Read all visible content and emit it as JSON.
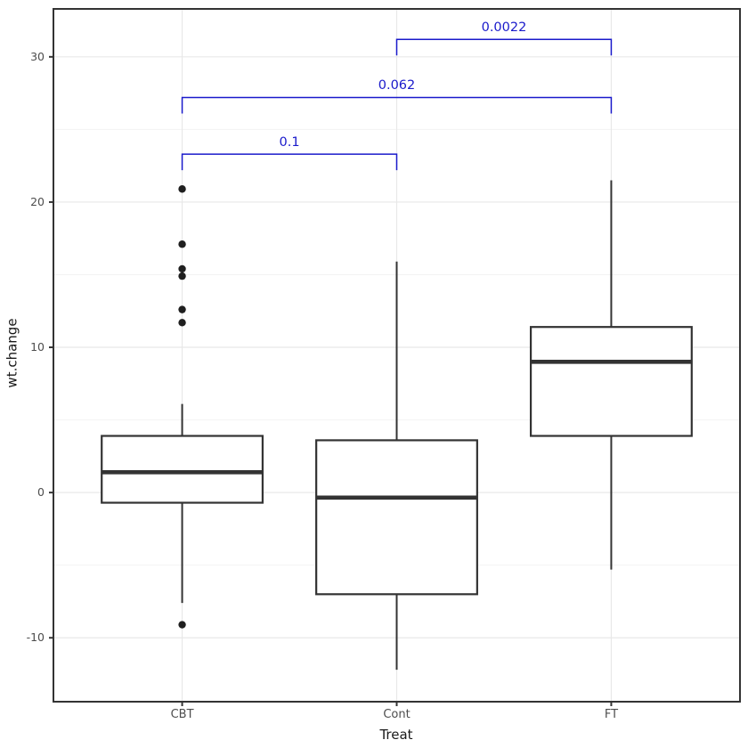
{
  "chart_data": {
    "type": "boxplot",
    "title": "",
    "xlabel": "Treat",
    "ylabel": "wt.change",
    "categories": [
      "CBT",
      "Cont",
      "FT"
    ],
    "yticks": [
      -10,
      0,
      10,
      20,
      30
    ],
    "yticks_minor": [
      -5,
      5,
      15,
      25
    ],
    "ylim": [
      -14.4,
      33.3
    ],
    "grid": "on",
    "boxes": [
      {
        "category": "CBT",
        "lower_whisker": -7.6,
        "q1": -0.7,
        "median": 1.4,
        "q3": 3.9,
        "upper_whisker": 6.1,
        "outliers": [
          20.9,
          17.1,
          15.4,
          14.9,
          12.6,
          11.7,
          -9.1
        ]
      },
      {
        "category": "Cont",
        "lower_whisker": -12.2,
        "q1": -7.0,
        "median": -0.35,
        "q3": 3.6,
        "upper_whisker": 15.9,
        "outliers": []
      },
      {
        "category": "FT",
        "lower_whisker": -5.3,
        "q1": 3.9,
        "median": 9.0,
        "q3": 11.4,
        "upper_whisker": 21.5,
        "outliers": []
      }
    ],
    "comparisons": [
      {
        "group1": "CBT",
        "group2": "Cont",
        "p_label": "0.1",
        "y": 23.3
      },
      {
        "group1": "CBT",
        "group2": "FT",
        "p_label": "0.062",
        "y": 27.2
      },
      {
        "group1": "Cont",
        "group2": "FT",
        "p_label": "0.0022",
        "y": 31.2
      }
    ],
    "colors": {
      "background": "#FFFFFF",
      "panel_border": "#333333",
      "grid_major": "#E8E8E8",
      "grid_minor": "#F3F3F3",
      "box_stroke": "#333333",
      "box_fill": "#FFFFFF",
      "point": "#1F1F1F",
      "bracket": "#1A1ACB",
      "axis_text": "#4D4D4D",
      "axis_title": "#1A1A1A"
    }
  }
}
